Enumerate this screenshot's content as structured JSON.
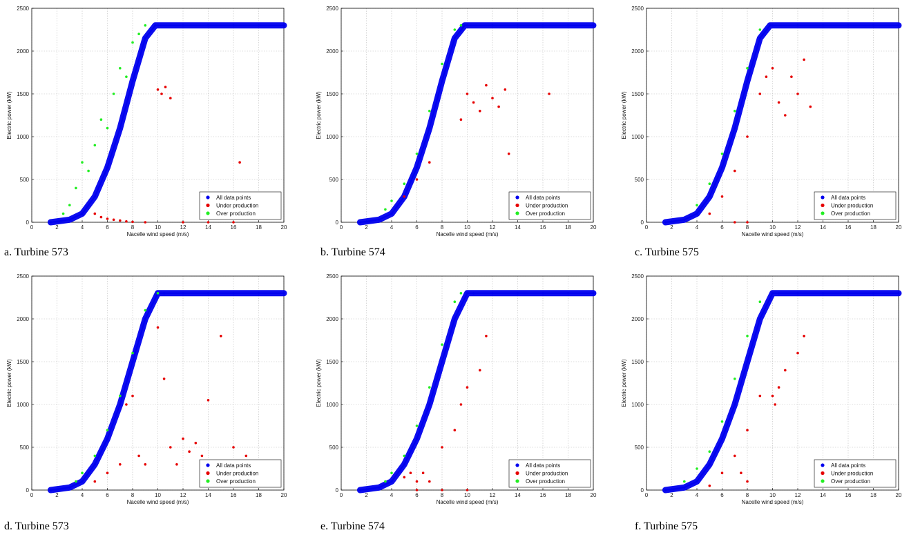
{
  "colors": {
    "all": "#0000ee",
    "under": "#e60000",
    "over": "#22ee22",
    "grid": "#bdbdbd"
  },
  "chart_data": [
    {
      "type": "scatter",
      "panel": "a",
      "caption": "a. Turbine 573",
      "xlabel": "Nacelle wind speed (m/s)",
      "ylabel": "Electric power (kW)",
      "xlim": [
        0,
        20
      ],
      "ylim": [
        0,
        2500
      ],
      "xticks": [
        0,
        2,
        4,
        6,
        8,
        10,
        12,
        14,
        16,
        18,
        20
      ],
      "yticks": [
        0,
        500,
        1000,
        1500,
        2000,
        2500
      ],
      "grid": true,
      "legend_position": "bottom-right",
      "series": [
        {
          "name": "All data points",
          "color_key": "all",
          "x": [
            1.5,
            3,
            4,
            5,
            6,
            7,
            8,
            9,
            9.8,
            10,
            12,
            14,
            16,
            18,
            20
          ],
          "y": [
            0,
            30,
            100,
            300,
            640,
            1100,
            1650,
            2150,
            2300,
            2300,
            2300,
            2300,
            2300,
            2300,
            2300
          ]
        },
        {
          "name": "Under production",
          "color_key": "under",
          "x": [
            5,
            5.5,
            6,
            6.5,
            7,
            7.5,
            8,
            9,
            10,
            10.3,
            10.6,
            11,
            12,
            14,
            16,
            16.5
          ],
          "y": [
            100,
            60,
            40,
            30,
            20,
            10,
            5,
            0,
            1550,
            1500,
            1580,
            1450,
            0,
            0,
            0,
            700
          ]
        },
        {
          "name": "Over production",
          "color_key": "over",
          "x": [
            2.5,
            3,
            3.5,
            4,
            4.5,
            5,
            5.5,
            6,
            6.5,
            7,
            7.5,
            8,
            8.5,
            9
          ],
          "y": [
            100,
            200,
            400,
            700,
            600,
            900,
            1200,
            1100,
            1500,
            1800,
            1700,
            2100,
            2200,
            2300
          ]
        }
      ]
    },
    {
      "type": "scatter",
      "panel": "b",
      "caption": "b. Turbine 574",
      "xlabel": "Nacelle wind speed (m/s)",
      "ylabel": "Electric power (kW)",
      "xlim": [
        0,
        20
      ],
      "ylim": [
        0,
        2500
      ],
      "xticks": [
        0,
        2,
        4,
        6,
        8,
        10,
        12,
        14,
        16,
        18,
        20
      ],
      "yticks": [
        0,
        500,
        1000,
        1500,
        2000,
        2500
      ],
      "grid": true,
      "legend_position": "bottom-right",
      "series": [
        {
          "name": "All data points",
          "color_key": "all",
          "x": [
            1.5,
            3,
            4,
            5,
            6,
            7,
            8,
            9,
            9.8,
            10,
            12,
            14,
            16,
            18,
            20
          ],
          "y": [
            0,
            30,
            100,
            300,
            640,
            1100,
            1650,
            2150,
            2300,
            2300,
            2300,
            2300,
            2300,
            2300,
            2300
          ]
        },
        {
          "name": "Under production",
          "color_key": "under",
          "x": [
            5,
            6,
            7,
            9.5,
            10,
            10.5,
            11,
            11.5,
            12,
            12.5,
            13,
            13.3,
            16.5
          ],
          "y": [
            300,
            500,
            700,
            1200,
            1500,
            1400,
            1300,
            1600,
            1450,
            1350,
            1550,
            800,
            1500
          ]
        },
        {
          "name": "Over production",
          "color_key": "over",
          "x": [
            3.5,
            4,
            5,
            6,
            7,
            8,
            9,
            9.5
          ],
          "y": [
            150,
            250,
            450,
            800,
            1300,
            1850,
            2250,
            2300
          ]
        }
      ]
    },
    {
      "type": "scatter",
      "panel": "c",
      "caption": "c. Turbine 575",
      "xlabel": "Nacelle wind speed (m/s)",
      "ylabel": "Electric power (kW)",
      "xlim": [
        0,
        20
      ],
      "ylim": [
        0,
        2500
      ],
      "xticks": [
        0,
        2,
        4,
        6,
        8,
        10,
        12,
        14,
        16,
        18,
        20
      ],
      "yticks": [
        0,
        500,
        1000,
        1500,
        2000,
        2500
      ],
      "grid": true,
      "legend_position": "bottom-right",
      "series": [
        {
          "name": "All data points",
          "color_key": "all",
          "x": [
            1.5,
            3,
            4,
            5,
            6,
            7,
            8,
            9,
            9.8,
            10,
            12,
            14,
            16,
            18,
            20
          ],
          "y": [
            0,
            30,
            100,
            300,
            640,
            1100,
            1650,
            2150,
            2300,
            2300,
            2300,
            2300,
            2300,
            2300,
            2300
          ]
        },
        {
          "name": "Under production",
          "color_key": "under",
          "x": [
            5,
            6,
            7,
            8,
            9,
            9.5,
            10,
            10.5,
            11,
            11.5,
            12,
            12.5,
            13,
            7,
            8
          ],
          "y": [
            100,
            300,
            600,
            1000,
            1500,
            1700,
            1800,
            1400,
            1250,
            1700,
            1500,
            1900,
            1350,
            0,
            0
          ]
        },
        {
          "name": "Over production",
          "color_key": "over",
          "x": [
            4,
            5,
            6,
            7,
            8,
            9
          ],
          "y": [
            200,
            450,
            800,
            1300,
            1800,
            2250
          ]
        }
      ]
    },
    {
      "type": "scatter",
      "panel": "d",
      "caption": "d. Turbine 573",
      "xlabel": "Nacelle wind speed (m/s)",
      "ylabel": "Electric power (kW)",
      "xlim": [
        0,
        20
      ],
      "ylim": [
        0,
        2500
      ],
      "xticks": [
        0,
        2,
        4,
        6,
        8,
        10,
        12,
        14,
        16,
        18,
        20
      ],
      "yticks": [
        0,
        500,
        1000,
        1500,
        2000,
        2500
      ],
      "grid": true,
      "legend_position": "bottom-right",
      "series": [
        {
          "name": "All data points",
          "color_key": "all",
          "x": [
            1.5,
            3,
            4,
            5,
            6,
            7,
            8,
            9,
            10,
            10.5,
            12,
            14,
            16,
            18,
            20
          ],
          "y": [
            0,
            30,
            100,
            300,
            600,
            1000,
            1500,
            2000,
            2300,
            2300,
            2300,
            2300,
            2300,
            2300,
            2300
          ]
        },
        {
          "name": "Under production",
          "color_key": "under",
          "x": [
            5,
            6,
            7,
            7.5,
            8,
            8.5,
            9,
            10,
            10.5,
            11,
            11.5,
            12,
            12.5,
            13,
            13.5,
            14,
            14.5,
            15,
            16,
            17
          ],
          "y": [
            100,
            200,
            300,
            1000,
            1100,
            400,
            300,
            1900,
            1300,
            500,
            300,
            600,
            450,
            550,
            400,
            1050,
            300,
            1800,
            500,
            400
          ]
        },
        {
          "name": "Over production",
          "color_key": "over",
          "x": [
            3.5,
            4,
            5,
            6,
            7,
            8,
            9,
            10
          ],
          "y": [
            100,
            200,
            400,
            700,
            1100,
            1600,
            2100,
            2300
          ]
        }
      ]
    },
    {
      "type": "scatter",
      "panel": "e",
      "caption": "e. Turbine 574",
      "xlabel": "Nacelle wind speed (m/s)",
      "ylabel": "Electric power (kW)",
      "xlim": [
        0,
        20
      ],
      "ylim": [
        0,
        2500
      ],
      "xticks": [
        0,
        2,
        4,
        6,
        8,
        10,
        12,
        14,
        16,
        18,
        20
      ],
      "yticks": [
        0,
        500,
        1000,
        1500,
        2000,
        2500
      ],
      "grid": true,
      "legend_position": "bottom-right",
      "series": [
        {
          "name": "All data points",
          "color_key": "all",
          "x": [
            1.5,
            3,
            4,
            5,
            6,
            7,
            8,
            9,
            10,
            10.5,
            12,
            14,
            16,
            18,
            20
          ],
          "y": [
            0,
            30,
            100,
            300,
            600,
            1000,
            1500,
            2000,
            2300,
            2300,
            2300,
            2300,
            2300,
            2300,
            2300
          ]
        },
        {
          "name": "Under production",
          "color_key": "under",
          "x": [
            5,
            5.5,
            6,
            6.5,
            7,
            8,
            9,
            9.5,
            10,
            11,
            11.5,
            6,
            8,
            10
          ],
          "y": [
            150,
            200,
            100,
            200,
            100,
            500,
            700,
            1000,
            1200,
            1400,
            1800,
            0,
            0,
            0
          ]
        },
        {
          "name": "Over production",
          "color_key": "over",
          "x": [
            3.5,
            4,
            5,
            6,
            7,
            8,
            9,
            9.5
          ],
          "y": [
            100,
            200,
            400,
            750,
            1200,
            1700,
            2200,
            2300
          ]
        }
      ]
    },
    {
      "type": "scatter",
      "panel": "f",
      "caption": "f. Turbine 575",
      "xlabel": "Nacelle wind speed (m/s)",
      "ylabel": "Electric power (kW)",
      "xlim": [
        0,
        20
      ],
      "ylim": [
        0,
        2500
      ],
      "xticks": [
        0,
        2,
        4,
        6,
        8,
        10,
        12,
        14,
        16,
        18,
        20
      ],
      "yticks": [
        0,
        500,
        1000,
        1500,
        2000,
        2500
      ],
      "grid": true,
      "legend_position": "bottom-right",
      "series": [
        {
          "name": "All data points",
          "color_key": "all",
          "x": [
            1.5,
            3,
            4,
            5,
            6,
            7,
            8,
            9,
            10,
            10.5,
            12,
            14,
            16,
            18,
            20
          ],
          "y": [
            0,
            30,
            100,
            300,
            600,
            1000,
            1500,
            2000,
            2300,
            2300,
            2300,
            2300,
            2300,
            2300,
            2300
          ]
        },
        {
          "name": "Under production",
          "color_key": "under",
          "x": [
            5,
            6,
            7,
            8,
            9,
            10,
            10.2,
            10.5,
            11,
            12,
            12.5,
            7.5,
            8
          ],
          "y": [
            50,
            200,
            400,
            700,
            1100,
            1100,
            1000,
            1200,
            1400,
            1600,
            1800,
            200,
            100
          ]
        },
        {
          "name": "Over production",
          "color_key": "over",
          "x": [
            3,
            4,
            5,
            6,
            7,
            8,
            9
          ],
          "y": [
            100,
            250,
            450,
            800,
            1300,
            1800,
            2200
          ]
        }
      ]
    }
  ]
}
